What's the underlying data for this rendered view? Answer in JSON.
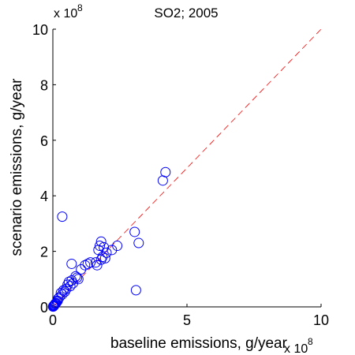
{
  "chart_data": {
    "type": "scatter",
    "title": "SO2; 2005",
    "xlabel": "baseline emissions, g/year",
    "ylabel": "scenario emissions, g/year",
    "x_exponent": "x 10",
    "x_exponent_power": "8",
    "y_exponent": "x 10",
    "y_exponent_power": "8",
    "xlim": [
      0,
      10
    ],
    "ylim": [
      0,
      10
    ],
    "xticks": [
      0,
      5,
      10
    ],
    "yticks": [
      0,
      2,
      4,
      6,
      8,
      10
    ],
    "xtick_labels": [
      "0",
      "5",
      "10"
    ],
    "ytick_labels": [
      "0",
      "2",
      "4",
      "6",
      "8",
      "10"
    ],
    "grid": false,
    "reference_line": {
      "style": "dashed",
      "color": "#ff0000",
      "from": [
        0,
        0
      ],
      "to": [
        10,
        10
      ]
    },
    "marker": {
      "shape": "circle",
      "color": "#0000ff",
      "filled": false
    },
    "points": [
      [
        4.2,
        4.85
      ],
      [
        4.1,
        4.55
      ],
      [
        0.35,
        3.25
      ],
      [
        3.05,
        2.7
      ],
      [
        3.2,
        2.3
      ],
      [
        3.1,
        0.6
      ],
      [
        2.4,
        2.2
      ],
      [
        2.2,
        2.05
      ],
      [
        1.8,
        2.35
      ],
      [
        1.75,
        2.2
      ],
      [
        1.9,
        2.15
      ],
      [
        1.7,
        2.05
      ],
      [
        2.0,
        1.95
      ],
      [
        1.85,
        1.8
      ],
      [
        1.95,
        1.75
      ],
      [
        1.8,
        1.7
      ],
      [
        1.6,
        1.6
      ],
      [
        1.65,
        1.5
      ],
      [
        1.4,
        1.6
      ],
      [
        1.3,
        1.55
      ],
      [
        1.2,
        1.5
      ],
      [
        1.05,
        1.35
      ],
      [
        0.7,
        1.55
      ],
      [
        0.9,
        1.05
      ],
      [
        0.95,
        1.0
      ],
      [
        0.85,
        1.1
      ],
      [
        0.7,
        0.95
      ],
      [
        0.75,
        0.85
      ],
      [
        0.6,
        0.9
      ],
      [
        0.65,
        0.75
      ],
      [
        0.55,
        0.8
      ],
      [
        0.5,
        0.65
      ],
      [
        0.45,
        0.55
      ],
      [
        0.4,
        0.6
      ],
      [
        0.35,
        0.45
      ],
      [
        0.3,
        0.5
      ],
      [
        0.25,
        0.35
      ],
      [
        0.2,
        0.3
      ],
      [
        0.18,
        0.22
      ],
      [
        0.15,
        0.18
      ],
      [
        0.12,
        0.14
      ],
      [
        0.1,
        0.12
      ],
      [
        0.08,
        0.1
      ],
      [
        0.06,
        0.07
      ],
      [
        0.05,
        0.05
      ],
      [
        0.03,
        0.04
      ],
      [
        0.02,
        0.02
      ],
      [
        0.01,
        0.01
      ]
    ]
  }
}
